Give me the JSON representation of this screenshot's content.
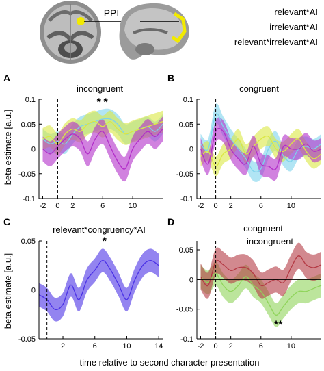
{
  "header": {
    "ppi_label": "PPI",
    "legend": [
      {
        "label": "relevant*AI",
        "color": "#5bc8e3"
      },
      {
        "label": "irrelevant*AI",
        "color": "#e4ed2a"
      },
      {
        "label": "relevant*irrelevant*AI",
        "color": "#b02cc2"
      }
    ],
    "highlight_color": "#f2ea00"
  },
  "figure": {
    "ylabel_top": "beta estimate [a.u.]",
    "ylabel_bottom": "beta estimate [a.u.]",
    "xlabel": "time relative to second character presentation"
  },
  "chart_data": [
    {
      "panel": "A",
      "type": "area",
      "title": "incongruent",
      "xlim": [
        -2.5,
        14
      ],
      "ylim": [
        -0.1,
        0.1
      ],
      "xticks": [
        -2,
        0,
        2,
        6,
        10
      ],
      "yticks": [
        -0.1,
        -0.05,
        0,
        0.05,
        0.1
      ],
      "ytick_labels": [
        "-0.1",
        "-0.05",
        "0",
        "0.05",
        "0.1"
      ],
      "vline": 0,
      "stars": [
        {
          "x": 5.5,
          "y": 0.087,
          "color": "#c23bd0"
        },
        {
          "x": 6.4,
          "y": 0.087,
          "color": "#4ec6e6"
        }
      ],
      "series": [
        {
          "color": "#7dd3ec",
          "x": [
            -2,
            -1,
            0,
            1,
            2,
            3,
            4,
            5,
            6,
            7,
            8,
            9,
            10,
            11,
            12,
            13,
            14
          ],
          "y": [
            0.02,
            0.01,
            0.015,
            0.01,
            0.03,
            0.045,
            0.05,
            0.055,
            0.06,
            0.06,
            0.05,
            0.03,
            0.035,
            0.04,
            0.045,
            0.035,
            0.05
          ],
          "se": 0.02
        },
        {
          "color": "#dbe742",
          "x": [
            -2,
            -1,
            0,
            1,
            2,
            3,
            4,
            5,
            6,
            7,
            8,
            9,
            10,
            11,
            12,
            13,
            14
          ],
          "y": [
            0.02,
            0.025,
            0.01,
            0.03,
            0.04,
            0.035,
            0.05,
            0.055,
            0.045,
            0.055,
            0.04,
            0.03,
            0.035,
            0.04,
            0.045,
            0.05,
            0.055
          ],
          "se": 0.022
        },
        {
          "color": "#b22ec9",
          "x": [
            -2,
            -1,
            0,
            1,
            2,
            3,
            4,
            5,
            6,
            7,
            8,
            9,
            10,
            11,
            12,
            13,
            14
          ],
          "y": [
            0.0,
            -0.01,
            0.005,
            0.02,
            0.03,
            0.02,
            -0.01,
            0.02,
            0.035,
            0.005,
            -0.025,
            -0.04,
            0.0,
            0.02,
            0.035,
            0.025,
            0.04
          ],
          "se": 0.025
        }
      ]
    },
    {
      "panel": "B",
      "type": "area",
      "title": "congruent",
      "xlim": [
        -2.5,
        14
      ],
      "ylim": [
        -0.1,
        0.1
      ],
      "xticks": [
        -2,
        0,
        2,
        6,
        10
      ],
      "yticks": [
        -0.1,
        -0.05,
        0,
        0.05,
        0.1
      ],
      "ytick_labels": [
        "-0.1",
        "-0.05",
        "0",
        "0.05",
        "0.1"
      ],
      "vline": 0,
      "series": [
        {
          "color": "#7dd3ec",
          "x": [
            -2,
            -1,
            0,
            1,
            2,
            3,
            4,
            5,
            6,
            7,
            8,
            9,
            10,
            11,
            12,
            13,
            14
          ],
          "y": [
            0.01,
            0.0,
            0.07,
            0.045,
            0.02,
            0.0,
            -0.02,
            -0.045,
            -0.04,
            0.0,
            0.015,
            -0.015,
            -0.025,
            0.0,
            0.005,
            0.0,
            0.01
          ],
          "se": 0.02
        },
        {
          "color": "#dbe742",
          "x": [
            -2,
            -1,
            0,
            1,
            2,
            3,
            4,
            5,
            6,
            7,
            8,
            9,
            10,
            11,
            12,
            13,
            14
          ],
          "y": [
            -0.015,
            -0.005,
            -0.035,
            -0.01,
            0.0,
            0.02,
            -0.01,
            0.005,
            0.02,
            0.025,
            0.0,
            -0.005,
            0.01,
            0.02,
            -0.005,
            -0.02,
            -0.01
          ],
          "se": 0.02
        },
        {
          "color": "#b22ec9",
          "x": [
            -2,
            -1,
            0,
            1,
            2,
            3,
            4,
            5,
            6,
            7,
            8,
            9,
            10,
            11,
            12,
            13,
            14
          ],
          "y": [
            0.0,
            -0.03,
            0.035,
            0.035,
            0.0,
            -0.02,
            -0.03,
            0.005,
            -0.03,
            -0.035,
            -0.04,
            0.005,
            0.0,
            0.0,
            0.01,
            -0.005,
            0.0
          ],
          "se": 0.022
        }
      ]
    },
    {
      "panel": "C",
      "type": "area",
      "title": "relevant*congruency*AI",
      "title_color": "#3b2ee0",
      "xlim": [
        -1,
        14.5
      ],
      "ylim": [
        -0.05,
        0.05
      ],
      "xticks": [
        2,
        6,
        10,
        14
      ],
      "yticks": [
        -0.05,
        0,
        0.05
      ],
      "ytick_labels": [
        "-0.05",
        "0",
        "0.05"
      ],
      "vline": 0,
      "stars": [
        {
          "x": 7.2,
          "y": 0.046,
          "color": "#3b2ee0"
        }
      ],
      "series": [
        {
          "color": "#4b32e6",
          "x": [
            -1,
            0,
            1,
            2,
            3,
            4,
            5,
            6,
            7,
            8,
            9,
            10,
            11,
            12,
            13,
            14
          ],
          "y": [
            -0.005,
            -0.01,
            -0.02,
            -0.015,
            0.005,
            -0.01,
            0.01,
            0.02,
            0.03,
            0.02,
            0.005,
            -0.01,
            0.01,
            0.025,
            0.03,
            0.025
          ],
          "se": 0.012
        }
      ]
    },
    {
      "panel": "D",
      "type": "area",
      "xlim": [
        -2.5,
        14
      ],
      "ylim": [
        -0.1,
        0.065
      ],
      "xticks": [
        -2,
        0,
        2,
        6,
        10
      ],
      "yticks": [
        -0.1,
        -0.05,
        0,
        0.05
      ],
      "ytick_labels": [
        "-0.1",
        "-0.05",
        "0",
        "0.05"
      ],
      "vline": 0,
      "stars": [
        {
          "x": 8.3,
          "y": -0.082,
          "color": "#7ed240"
        }
      ],
      "legend_inline": [
        {
          "label": "congruent",
          "color": "#7ed240"
        },
        {
          "label": "incongruent",
          "color": "#b5262f"
        }
      ],
      "series": [
        {
          "name": "congruent",
          "color": "#8fd45a",
          "x": [
            -2,
            -1,
            0,
            1,
            2,
            3,
            4,
            5,
            6,
            7,
            8,
            9,
            10,
            11,
            12,
            13,
            14
          ],
          "y": [
            0.005,
            -0.005,
            0.01,
            -0.01,
            -0.02,
            -0.01,
            0.005,
            -0.01,
            -0.02,
            -0.04,
            -0.06,
            -0.045,
            -0.03,
            -0.02,
            -0.02,
            -0.015,
            -0.01
          ],
          "se": 0.02
        },
        {
          "name": "incongruent",
          "color": "#b43a44",
          "x": [
            -2,
            -1,
            0,
            1,
            2,
            3,
            4,
            5,
            6,
            7,
            8,
            9,
            10,
            11,
            12,
            13,
            14
          ],
          "y": [
            0.005,
            -0.01,
            0.03,
            0.025,
            0.015,
            0.02,
            0.02,
            0.01,
            -0.01,
            -0.005,
            0.0,
            -0.005,
            0.02,
            0.04,
            0.025,
            0.02,
            0.025
          ],
          "se": 0.022
        }
      ]
    }
  ]
}
